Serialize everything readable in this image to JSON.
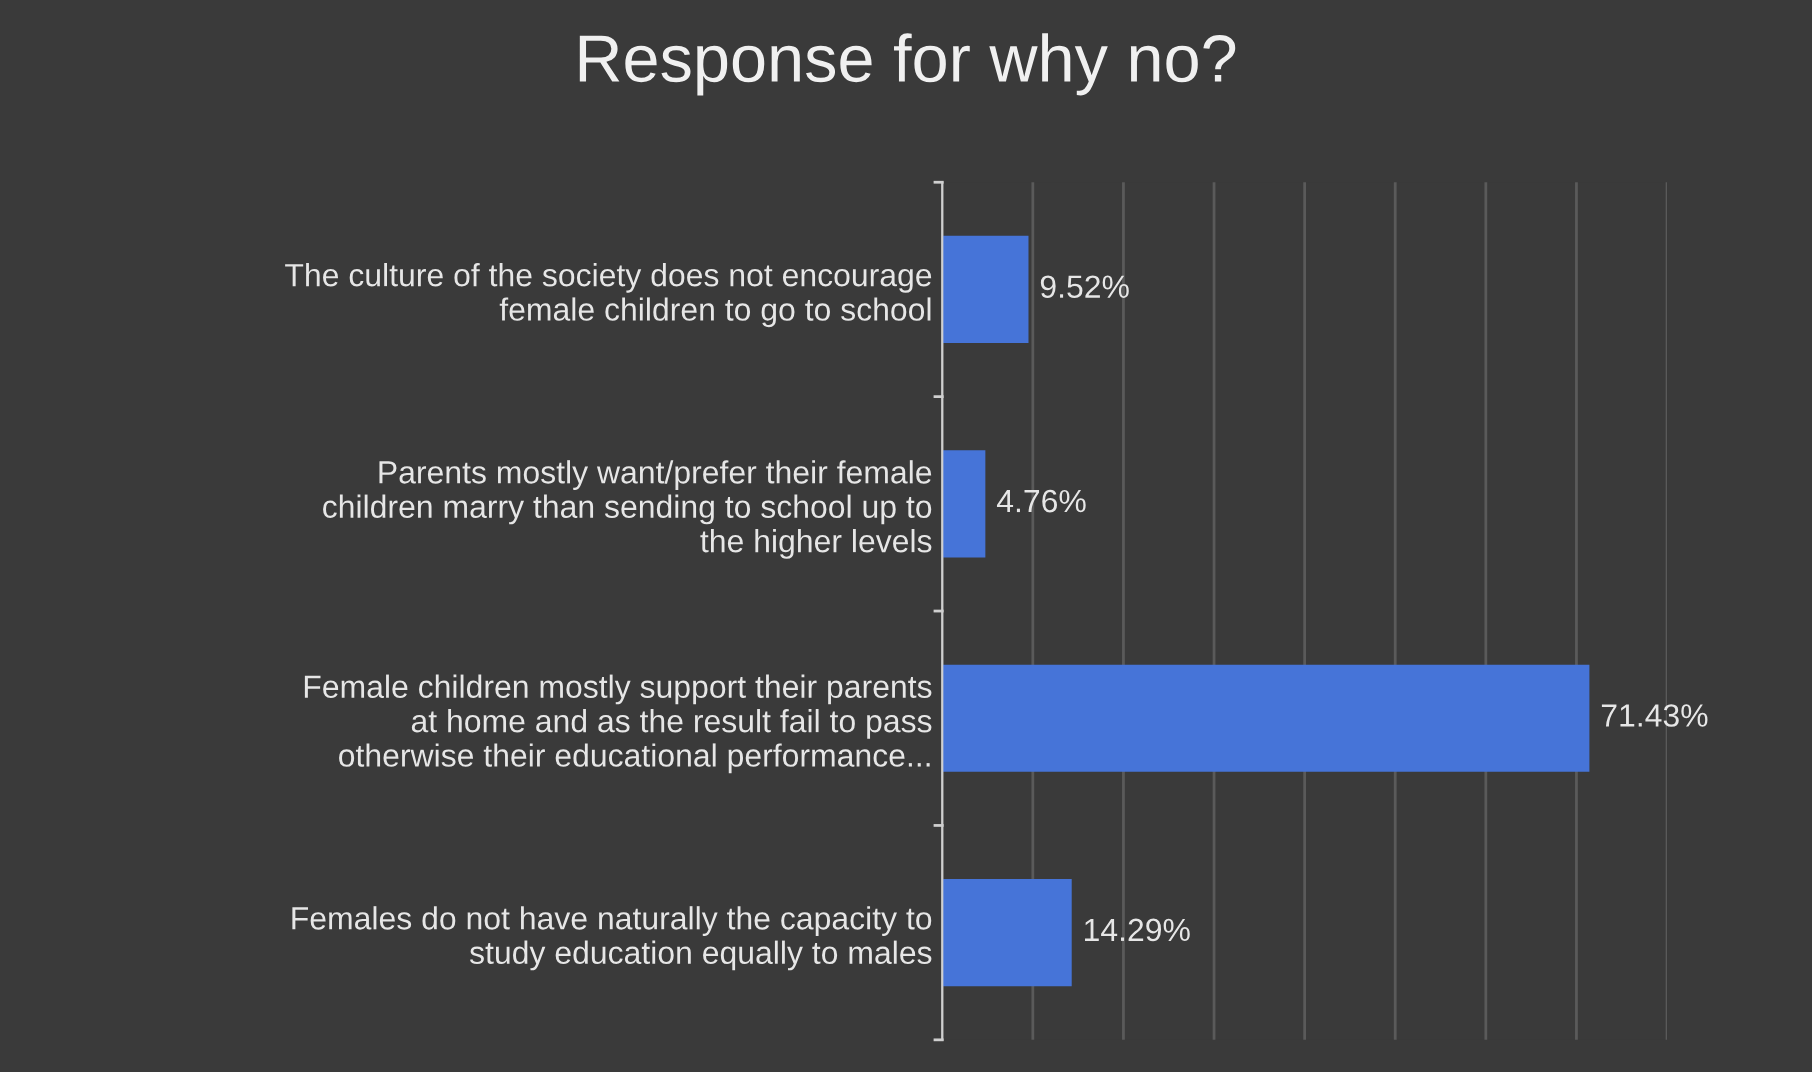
{
  "chart_data": {
    "type": "bar",
    "orientation": "horizontal",
    "title": "Response for why no?",
    "categories": [
      "The culture of the society does not encourage\nfemale children to go to school",
      "Parents mostly want/prefer their female\nchildren marry than sending to school up to\nthe higher levels",
      "Female children mostly support their parents\nat home and as the result fail to pass\notherwise their educational performance...",
      "Females do not have naturally the capacity to\nstudy education equally to males"
    ],
    "values": [
      9.52,
      4.76,
      71.43,
      14.29
    ],
    "value_labels": [
      "9.52%",
      "4.76%",
      "71.43%",
      "14.29%"
    ],
    "color": "#4674d8",
    "xlim": [
      0,
      80
    ],
    "xticks": [
      {
        "value": 0,
        "label": null
      },
      {
        "value": 10,
        "label": null
      },
      {
        "value": 20,
        "label": null
      },
      {
        "value": 30,
        "label": null
      },
      {
        "value": 40,
        "label": null
      },
      {
        "value": 50,
        "label": null
      },
      {
        "value": 60,
        "label": null
      },
      {
        "value": 70,
        "label": null
      },
      {
        "value": 80,
        "label": null
      }
    ],
    "grid": "x",
    "tick_labels": "y"
  }
}
